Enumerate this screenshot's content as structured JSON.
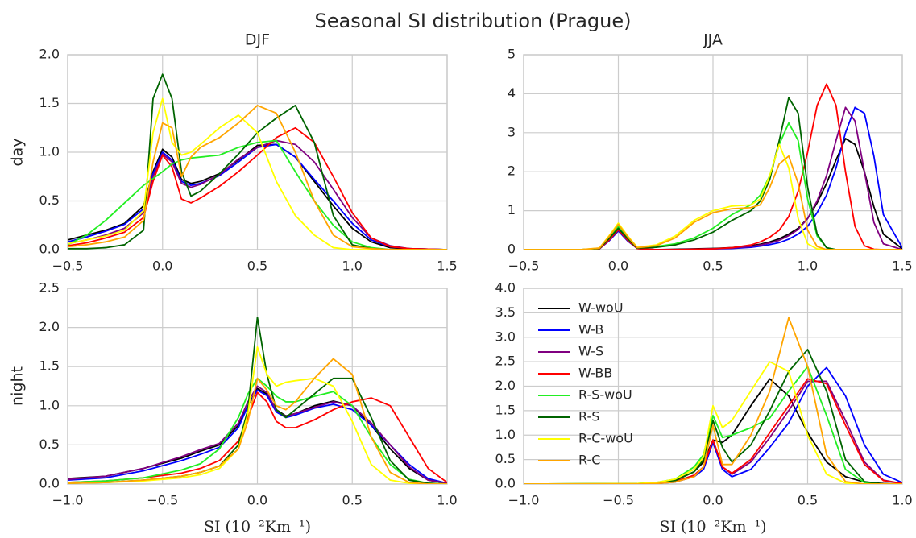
{
  "title": "Seasonal SI distribution (Prague)",
  "chart_data": [
    {
      "type": "line",
      "title": "DJF",
      "ylabel": "day",
      "xlim": [
        -0.5,
        1.5
      ],
      "ylim": [
        0,
        2
      ],
      "grid": true,
      "xticks": [
        {
          "value": -0.5,
          "label": "−0.5"
        },
        {
          "value": 0,
          "label": "0.0"
        },
        0.5,
        {
          "value": 1,
          "label": "1.0"
        },
        1.5
      ],
      "yticks": [
        {
          "value": 0,
          "label": "0.0"
        },
        0.5,
        {
          "value": 1,
          "label": "1.0"
        },
        1.5,
        {
          "value": 2,
          "label": "2.0"
        }
      ],
      "x": [
        -0.5,
        -0.4,
        -0.3,
        -0.2,
        -0.1,
        -0.05,
        0,
        0.05,
        0.1,
        0.15,
        0.2,
        0.3,
        0.4,
        0.5,
        0.6,
        0.7,
        0.8,
        0.9,
        1.0,
        1.1,
        1.2,
        1.3,
        1.5
      ],
      "series": [
        {
          "color": "#000000",
          "values": [
            0.1,
            0.15,
            0.2,
            0.27,
            0.45,
            0.8,
            1.03,
            0.95,
            0.72,
            0.68,
            0.7,
            0.78,
            0.92,
            1.07,
            1.08,
            0.95,
            0.7,
            0.45,
            0.22,
            0.08,
            0.02,
            0.01,
            0
          ]
        },
        {
          "color": "#0000ff",
          "values": [
            0.08,
            0.13,
            0.19,
            0.26,
            0.42,
            0.78,
            1.0,
            0.92,
            0.7,
            0.66,
            0.68,
            0.76,
            0.9,
            1.05,
            1.08,
            0.95,
            0.72,
            0.5,
            0.27,
            0.1,
            0.03,
            0.01,
            0
          ]
        },
        {
          "color": "#800080",
          "values": [
            0.06,
            0.1,
            0.15,
            0.22,
            0.38,
            0.75,
            0.98,
            0.9,
            0.68,
            0.64,
            0.67,
            0.77,
            0.93,
            1.05,
            1.12,
            1.08,
            0.9,
            0.62,
            0.33,
            0.12,
            0.04,
            0.01,
            0
          ]
        },
        {
          "color": "#ff0000",
          "values": [
            0.04,
            0.07,
            0.12,
            0.18,
            0.33,
            0.7,
            0.97,
            0.85,
            0.52,
            0.48,
            0.53,
            0.65,
            0.8,
            0.97,
            1.15,
            1.25,
            1.1,
            0.75,
            0.38,
            0.12,
            0.03,
            0.01,
            0
          ]
        },
        {
          "color": "#22ee22",
          "values": [
            0.05,
            0.15,
            0.3,
            0.48,
            0.66,
            0.73,
            0.8,
            0.88,
            0.92,
            0.94,
            0.95,
            0.97,
            1.05,
            1.1,
            1.12,
            0.8,
            0.5,
            0.25,
            0.08,
            0.02,
            0,
            0,
            0
          ]
        },
        {
          "color": "#006400",
          "values": [
            0.01,
            0.01,
            0.02,
            0.05,
            0.2,
            1.55,
            1.8,
            1.55,
            0.8,
            0.55,
            0.6,
            0.78,
            0.98,
            1.2,
            1.35,
            1.48,
            1.1,
            0.35,
            0.05,
            0.01,
            0,
            0,
            0
          ]
        },
        {
          "color": "#ffff00",
          "values": [
            0.06,
            0.1,
            0.14,
            0.2,
            0.4,
            1.2,
            1.55,
            1.1,
            0.97,
            1.0,
            1.08,
            1.25,
            1.38,
            1.2,
            0.7,
            0.35,
            0.15,
            0.02,
            0,
            0,
            0,
            0,
            0
          ]
        },
        {
          "color": "#ffa500",
          "values": [
            0.03,
            0.05,
            0.08,
            0.13,
            0.3,
            0.9,
            1.3,
            1.25,
            0.75,
            0.95,
            1.05,
            1.15,
            1.3,
            1.48,
            1.4,
            1.0,
            0.5,
            0.15,
            0.03,
            0.01,
            0,
            0,
            0
          ]
        }
      ]
    },
    {
      "type": "line",
      "title": "JJA",
      "xlim": [
        -0.5,
        1.5
      ],
      "ylim": [
        0,
        5
      ],
      "grid": true,
      "xticks": [
        {
          "value": -0.5,
          "label": "−0.5"
        },
        {
          "value": 0,
          "label": "0.0"
        },
        0.5,
        {
          "value": 1,
          "label": "1.0"
        },
        1.5
      ],
      "yticks": [
        0,
        1,
        2,
        3,
        4,
        5
      ],
      "x": [
        -0.5,
        -0.2,
        -0.1,
        -0.05,
        0,
        0.05,
        0.1,
        0.2,
        0.3,
        0.4,
        0.5,
        0.6,
        0.7,
        0.75,
        0.8,
        0.85,
        0.9,
        0.95,
        1.0,
        1.05,
        1.1,
        1.15,
        1.2,
        1.25,
        1.3,
        1.35,
        1.4,
        1.5
      ],
      "series": [
        {
          "color": "#000000",
          "values": [
            0,
            0,
            0.02,
            0.25,
            0.5,
            0.25,
            0.03,
            0,
            0.01,
            0.02,
            0.03,
            0.05,
            0.1,
            0.14,
            0.2,
            0.28,
            0.4,
            0.55,
            0.8,
            1.2,
            1.7,
            2.3,
            2.85,
            2.7,
            2.0,
            1.1,
            0.4,
            0.02
          ]
        },
        {
          "color": "#0000ff",
          "values": [
            0,
            0,
            0.02,
            0.22,
            0.48,
            0.22,
            0.03,
            0,
            0,
            0.01,
            0.02,
            0.03,
            0.06,
            0.09,
            0.13,
            0.18,
            0.27,
            0.4,
            0.6,
            0.95,
            1.4,
            2.1,
            3.0,
            3.65,
            3.5,
            2.4,
            0.9,
            0.05
          ]
        },
        {
          "color": "#800080",
          "values": [
            0,
            0,
            0.02,
            0.23,
            0.5,
            0.23,
            0.03,
            0,
            0,
            0.01,
            0.02,
            0.04,
            0.08,
            0.12,
            0.17,
            0.24,
            0.36,
            0.52,
            0.8,
            1.25,
            1.9,
            2.8,
            3.65,
            3.3,
            2.0,
            0.7,
            0.15,
            0
          ]
        },
        {
          "color": "#ff0000",
          "values": [
            0,
            0,
            0.02,
            0.25,
            0.52,
            0.25,
            0.03,
            0,
            0,
            0.01,
            0.02,
            0.05,
            0.12,
            0.2,
            0.32,
            0.5,
            0.85,
            1.5,
            2.5,
            3.7,
            4.25,
            3.7,
            2.0,
            0.6,
            0.1,
            0.01,
            0,
            0
          ]
        },
        {
          "color": "#22ee22",
          "values": [
            0,
            0,
            0.03,
            0.3,
            0.6,
            0.3,
            0.05,
            0.08,
            0.15,
            0.3,
            0.55,
            0.9,
            1.15,
            1.4,
            1.9,
            2.7,
            3.25,
            2.8,
            1.3,
            0.35,
            0.05,
            0,
            0,
            0,
            0,
            0,
            0,
            0
          ]
        },
        {
          "color": "#006400",
          "values": [
            0,
            0,
            0.03,
            0.28,
            0.55,
            0.28,
            0.04,
            0.06,
            0.12,
            0.25,
            0.45,
            0.75,
            1.0,
            1.25,
            1.8,
            2.8,
            3.9,
            3.5,
            1.6,
            0.4,
            0.05,
            0,
            0,
            0,
            0,
            0,
            0,
            0
          ]
        },
        {
          "color": "#ffff00",
          "values": [
            0,
            0,
            0.04,
            0.35,
            0.68,
            0.35,
            0.06,
            0.12,
            0.35,
            0.75,
            1.0,
            1.12,
            1.15,
            1.3,
            1.9,
            2.7,
            2.1,
            0.8,
            0.15,
            0.02,
            0,
            0,
            0,
            0,
            0,
            0,
            0,
            0
          ]
        },
        {
          "color": "#ffa500",
          "values": [
            0,
            0,
            0.04,
            0.33,
            0.65,
            0.33,
            0.05,
            0.1,
            0.3,
            0.7,
            0.95,
            1.05,
            1.08,
            1.15,
            1.6,
            2.2,
            2.4,
            1.7,
            0.5,
            0.08,
            0,
            0,
            0,
            0,
            0,
            0,
            0,
            0
          ]
        }
      ]
    },
    {
      "type": "line",
      "ylabel": "night",
      "xlabel": "SI (10⁻²Km⁻¹)",
      "xlim": [
        -1,
        1
      ],
      "ylim": [
        0,
        2.5
      ],
      "grid": true,
      "xticks": [
        {
          "value": -1,
          "label": "−1.0"
        },
        {
          "value": -0.5,
          "label": "−0.5"
        },
        {
          "value": 0,
          "label": "0.0"
        },
        0.5,
        {
          "value": 1,
          "label": "1.0"
        }
      ],
      "yticks": [
        {
          "value": 0,
          "label": "0.0"
        },
        0.5,
        {
          "value": 1,
          "label": "1.0"
        },
        1.5,
        {
          "value": 2,
          "label": "2.0"
        },
        2.5
      ],
      "x": [
        -1,
        -0.8,
        -0.6,
        -0.4,
        -0.3,
        -0.2,
        -0.1,
        -0.05,
        0,
        0.05,
        0.1,
        0.15,
        0.2,
        0.3,
        0.4,
        0.5,
        0.6,
        0.7,
        0.8,
        0.9,
        1.0
      ],
      "series": [
        {
          "color": "#000000",
          "values": [
            0.07,
            0.1,
            0.2,
            0.33,
            0.42,
            0.5,
            0.75,
            1.0,
            1.22,
            1.15,
            0.95,
            0.87,
            0.9,
            1.0,
            1.06,
            1.0,
            0.75,
            0.45,
            0.2,
            0.05,
            0.01
          ]
        },
        {
          "color": "#0000ff",
          "values": [
            0.05,
            0.08,
            0.17,
            0.3,
            0.38,
            0.47,
            0.72,
            1.0,
            1.2,
            1.13,
            0.92,
            0.85,
            0.88,
            0.97,
            1.02,
            0.95,
            0.75,
            0.5,
            0.25,
            0.07,
            0.01
          ]
        },
        {
          "color": "#800080",
          "values": [
            0.06,
            0.1,
            0.2,
            0.35,
            0.44,
            0.52,
            0.78,
            1.05,
            1.25,
            1.17,
            0.94,
            0.86,
            0.9,
            0.98,
            1.05,
            1.0,
            0.78,
            0.5,
            0.22,
            0.05,
            0.01
          ]
        },
        {
          "color": "#ff0000",
          "values": [
            0.02,
            0.04,
            0.08,
            0.14,
            0.2,
            0.3,
            0.55,
            0.85,
            1.17,
            1.05,
            0.8,
            0.72,
            0.72,
            0.82,
            0.95,
            1.05,
            1.1,
            1.0,
            0.6,
            0.2,
            0.02
          ]
        },
        {
          "color": "#22ee22",
          "values": [
            0.02,
            0.04,
            0.08,
            0.18,
            0.26,
            0.45,
            0.85,
            1.15,
            1.35,
            1.25,
            1.12,
            1.05,
            1.05,
            1.12,
            1.18,
            1.0,
            0.6,
            0.25,
            0.06,
            0.01,
            0
          ]
        },
        {
          "color": "#006400",
          "values": [
            0.01,
            0.02,
            0.05,
            0.1,
            0.15,
            0.23,
            0.5,
            0.95,
            2.13,
            1.4,
            0.95,
            0.85,
            0.95,
            1.15,
            1.35,
            1.35,
            0.85,
            0.3,
            0.05,
            0.01,
            0
          ]
        },
        {
          "color": "#ffff00",
          "values": [
            0.01,
            0.02,
            0.04,
            0.08,
            0.12,
            0.2,
            0.45,
            0.9,
            1.75,
            1.4,
            1.25,
            1.3,
            1.32,
            1.35,
            1.25,
            0.8,
            0.25,
            0.05,
            0.01,
            0,
            0
          ]
        },
        {
          "color": "#ffa500",
          "values": [
            0.01,
            0.02,
            0.05,
            0.1,
            0.15,
            0.23,
            0.45,
            0.8,
            1.35,
            1.2,
            1.0,
            0.95,
            1.05,
            1.35,
            1.6,
            1.4,
            0.6,
            0.15,
            0.02,
            0,
            0
          ]
        }
      ]
    },
    {
      "type": "line",
      "xlabel": "SI (10⁻²Km⁻¹)",
      "legend": "upper left",
      "xlim": [
        -1,
        1
      ],
      "ylim": [
        0,
        4
      ],
      "grid": true,
      "xticks": [
        {
          "value": -1,
          "label": "−1.0"
        },
        {
          "value": -0.5,
          "label": "−0.5"
        },
        {
          "value": 0,
          "label": "0.0"
        },
        0.5,
        {
          "value": 1,
          "label": "1.0"
        }
      ],
      "yticks": [
        {
          "value": 0,
          "label": "0.0"
        },
        0.5,
        {
          "value": 1,
          "label": "1.0"
        },
        1.5,
        {
          "value": 2,
          "label": "2.0"
        },
        2.5,
        {
          "value": 3,
          "label": "3.0"
        },
        3.5,
        {
          "value": 4,
          "label": "4.0"
        }
      ],
      "x": [
        -1,
        -0.4,
        -0.3,
        -0.2,
        -0.1,
        -0.05,
        0,
        0.05,
        0.1,
        0.2,
        0.3,
        0.4,
        0.5,
        0.6,
        0.7,
        0.8,
        0.9,
        1.0
      ],
      "series": [
        {
          "name": "W-woU",
          "color": "#000000",
          "values": [
            0,
            0,
            0.02,
            0.08,
            0.25,
            0.45,
            0.9,
            0.85,
            1.0,
            1.6,
            2.15,
            1.8,
            1.05,
            0.45,
            0.15,
            0.04,
            0.01,
            0
          ]
        },
        {
          "name": "W-B",
          "color": "#0000ff",
          "values": [
            0,
            0,
            0.01,
            0.04,
            0.15,
            0.3,
            0.85,
            0.3,
            0.15,
            0.3,
            0.75,
            1.25,
            2.0,
            2.38,
            1.8,
            0.8,
            0.2,
            0.03
          ]
        },
        {
          "name": "W-S",
          "color": "#800080",
          "values": [
            0,
            0,
            0.01,
            0.05,
            0.18,
            0.35,
            0.9,
            0.35,
            0.2,
            0.45,
            0.95,
            1.5,
            2.1,
            2.1,
            1.3,
            0.45,
            0.08,
            0.01
          ]
        },
        {
          "name": "W-BB",
          "color": "#ff0000",
          "values": [
            0,
            0,
            0.01,
            0.05,
            0.18,
            0.35,
            0.9,
            0.35,
            0.22,
            0.5,
            1.05,
            1.6,
            2.15,
            2.05,
            1.2,
            0.4,
            0.07,
            0.01
          ]
        },
        {
          "name": "R-S-woU",
          "color": "#22ee22",
          "values": [
            0,
            0.01,
            0.03,
            0.1,
            0.35,
            0.6,
            1.4,
            0.95,
            1.0,
            1.15,
            1.35,
            1.9,
            2.4,
            1.4,
            0.3,
            0.03,
            0,
            0
          ]
        },
        {
          "name": "R-S",
          "color": "#006400",
          "values": [
            0,
            0.01,
            0.02,
            0.07,
            0.25,
            0.5,
            1.3,
            0.75,
            0.45,
            0.8,
            1.5,
            2.3,
            2.75,
            1.9,
            0.5,
            0.05,
            0,
            0
          ]
        },
        {
          "name": "R-C-woU",
          "color": "#ffff00",
          "values": [
            0,
            0.01,
            0.03,
            0.1,
            0.3,
            0.55,
            1.6,
            1.15,
            1.3,
            1.9,
            2.5,
            2.3,
            1.0,
            0.2,
            0.02,
            0,
            0,
            0
          ]
        },
        {
          "name": "R-C",
          "color": "#ffa500",
          "values": [
            0,
            0,
            0.01,
            0.04,
            0.15,
            0.35,
            1.2,
            0.4,
            0.4,
            1.0,
            1.9,
            3.4,
            2.4,
            0.6,
            0.05,
            0,
            0,
            0
          ]
        }
      ]
    }
  ]
}
